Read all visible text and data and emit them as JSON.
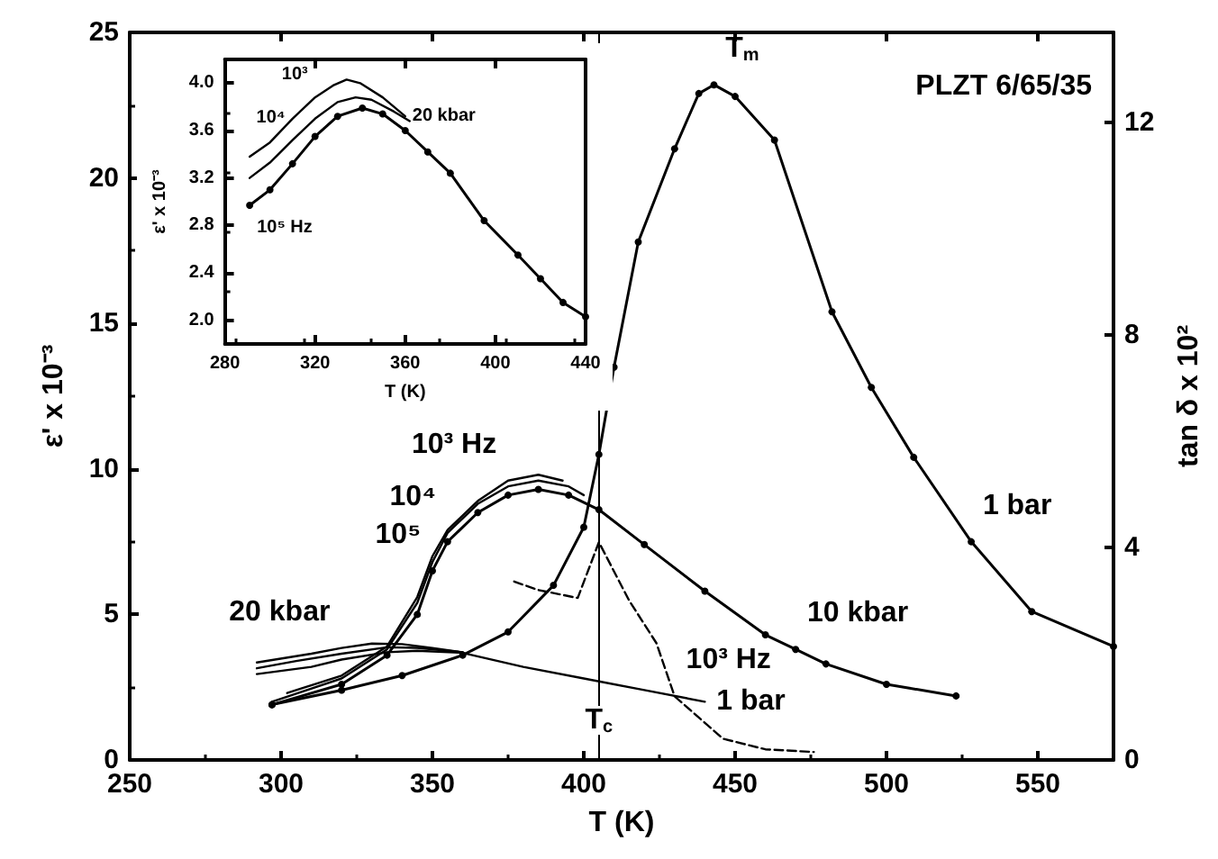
{
  "chart_data": [
    {
      "type": "line",
      "xlabel": "T (K)",
      "ylabel": "ε' x 10⁻³",
      "y2label": "tan δ x 10²",
      "xlim": [
        250,
        575
      ],
      "xticks": [
        250,
        300,
        350,
        400,
        450,
        500,
        550
      ],
      "ylim": [
        0,
        25
      ],
      "yticks": [
        0,
        5,
        10,
        15,
        20,
        25
      ],
      "y2lim": [
        0,
        13.7
      ],
      "y2ticks": [
        0,
        4,
        8,
        12
      ],
      "series": [
        {
          "color": "#000000",
          "marker": "circle",
          "line_style": "solid",
          "x": [
            297,
            320,
            340,
            360,
            375,
            390,
            400,
            405,
            410,
            418,
            430,
            438,
            443,
            450,
            463,
            482,
            495,
            509,
            528,
            548,
            575
          ],
          "values": [
            1.9,
            2.4,
            2.9,
            3.6,
            4.4,
            6.0,
            8.0,
            10.5,
            13.5,
            17.8,
            21.0,
            22.9,
            23.2,
            22.8,
            21.3,
            15.4,
            12.8,
            10.4,
            7.5,
            5.1,
            3.9
          ]
        },
        {
          "color": "#000000",
          "marker": "none",
          "line_style": "solid",
          "x": [
            302,
            320,
            335,
            345,
            350,
            355,
            365,
            375,
            385,
            393
          ],
          "values": [
            2.3,
            2.9,
            3.9,
            5.6,
            7.0,
            7.9,
            8.9,
            9.6,
            9.8,
            9.6
          ]
        },
        {
          "color": "#000000",
          "marker": "none",
          "line_style": "solid",
          "x": [
            297,
            320,
            335,
            345,
            350,
            355,
            365,
            375,
            385,
            395,
            400
          ],
          "values": [
            2.0,
            2.8,
            3.8,
            5.4,
            6.8,
            7.8,
            8.8,
            9.4,
            9.6,
            9.4,
            9.1
          ]
        },
        {
          "color": "#000000",
          "marker": "circle",
          "line_style": "solid",
          "x": [
            297,
            320,
            335,
            345,
            350,
            355,
            365,
            375,
            385,
            395,
            405,
            420,
            440,
            460,
            470,
            480,
            500,
            523
          ],
          "values": [
            1.9,
            2.6,
            3.6,
            5.0,
            6.5,
            7.5,
            8.5,
            9.1,
            9.3,
            9.1,
            8.6,
            7.4,
            5.8,
            4.3,
            3.8,
            3.3,
            2.6,
            2.2
          ]
        },
        {
          "color": "#000000",
          "marker": "none",
          "line_style": "solid",
          "x": [
            292,
            310,
            320,
            330,
            340,
            350,
            360
          ],
          "values": [
            3.35,
            3.65,
            3.85,
            4.0,
            3.98,
            3.85,
            3.7
          ]
        },
        {
          "color": "#000000",
          "marker": "none",
          "line_style": "solid",
          "x": [
            292,
            305,
            320,
            335,
            345,
            360
          ],
          "values": [
            3.15,
            3.4,
            3.65,
            3.87,
            3.85,
            3.7
          ]
        },
        {
          "color": "#000000",
          "marker": "none",
          "line_style": "solid",
          "x": [
            292,
            310,
            320,
            335,
            345,
            360,
            380,
            400,
            420,
            440
          ],
          "values": [
            2.95,
            3.2,
            3.45,
            3.7,
            3.75,
            3.68,
            3.2,
            2.8,
            2.4,
            2.0
          ]
        },
        {
          "color": "#000000",
          "marker": "none",
          "line_style": "dashed",
          "axis": "y2",
          "x": [
            377,
            385,
            398,
            405,
            415,
            424,
            430,
            446,
            460,
            476
          ],
          "values": [
            3.36,
            3.2,
            3.05,
            4.1,
            3.0,
            2.2,
            1.2,
            0.4,
            0.2,
            0.15
          ]
        }
      ],
      "ref_lines": [
        {
          "axis": "x",
          "value": 405,
          "label": "T$_{c}$",
          "color": "#000000"
        }
      ],
      "annotations": [
        "PLZT 6/65/35",
        {
          "text": "T$_{m}$",
          "x": 443,
          "y": 23.2
        },
        {
          "text": "1 bar",
          "x": 528,
          "y": 7.5
        },
        {
          "text": "10 kbar",
          "x": 470,
          "y": 3.8
        },
        {
          "text": "20 kbar",
          "x": 320,
          "y": 3.85
        },
        {
          "text": "10³ Hz",
          "x": 375,
          "y": 9.6
        },
        {
          "text": "10⁴",
          "x": 355,
          "y": 7.8
        },
        {
          "text": "10⁵",
          "x": 350,
          "y": 6.5
        },
        {
          "text": "10³ Hz",
          "x": 430,
          "y": 2.19
        },
        {
          "text": "1 bar",
          "x": 440,
          "y": 2.0
        }
      ]
    },
    {
      "type": "line",
      "xlabel": "T (K)",
      "ylabel": "ε' x 10⁻³",
      "xlim": [
        280,
        440
      ],
      "xticks": [
        280,
        320,
        360,
        400,
        440
      ],
      "ylim": [
        1.8,
        4.2
      ],
      "yticks": [
        {
          "value": 2,
          "label": "2.0"
        },
        2.4,
        2.8,
        3.2,
        3.6,
        {
          "value": 4,
          "label": "4.0"
        }
      ],
      "series": [
        {
          "color": "#000000",
          "marker": "none",
          "line_style": "solid",
          "x": [
            291,
            300,
            310,
            320,
            328,
            334,
            340,
            350,
            360
          ],
          "values": [
            3.38,
            3.5,
            3.7,
            3.88,
            3.98,
            4.03,
            4.0,
            3.88,
            3.72
          ]
        },
        {
          "color": "#000000",
          "marker": "none",
          "line_style": "solid",
          "x": [
            291,
            300,
            310,
            320,
            330,
            338,
            345,
            355,
            362
          ],
          "values": [
            3.2,
            3.33,
            3.52,
            3.7,
            3.84,
            3.88,
            3.86,
            3.76,
            3.68
          ]
        },
        {
          "color": "#000000",
          "marker": "circle",
          "line_style": "solid",
          "x": [
            291,
            300,
            310,
            320,
            330,
            341,
            350,
            360,
            370,
            380,
            395,
            410,
            420,
            430,
            440
          ],
          "values": [
            2.97,
            3.1,
            3.32,
            3.55,
            3.72,
            3.79,
            3.74,
            3.6,
            3.42,
            3.24,
            2.84,
            2.55,
            2.35,
            2.15,
            2.03
          ]
        }
      ],
      "annotations": [
        {
          "text": "20 kbar",
          "x": 360,
          "y": 3.72
        },
        {
          "text": "10³",
          "x": 320,
          "y": 3.88
        },
        {
          "text": "10⁴",
          "x": 310,
          "y": 3.52
        },
        {
          "text": "10⁵ Hz",
          "x": 291,
          "y": 2.97
        }
      ]
    }
  ]
}
